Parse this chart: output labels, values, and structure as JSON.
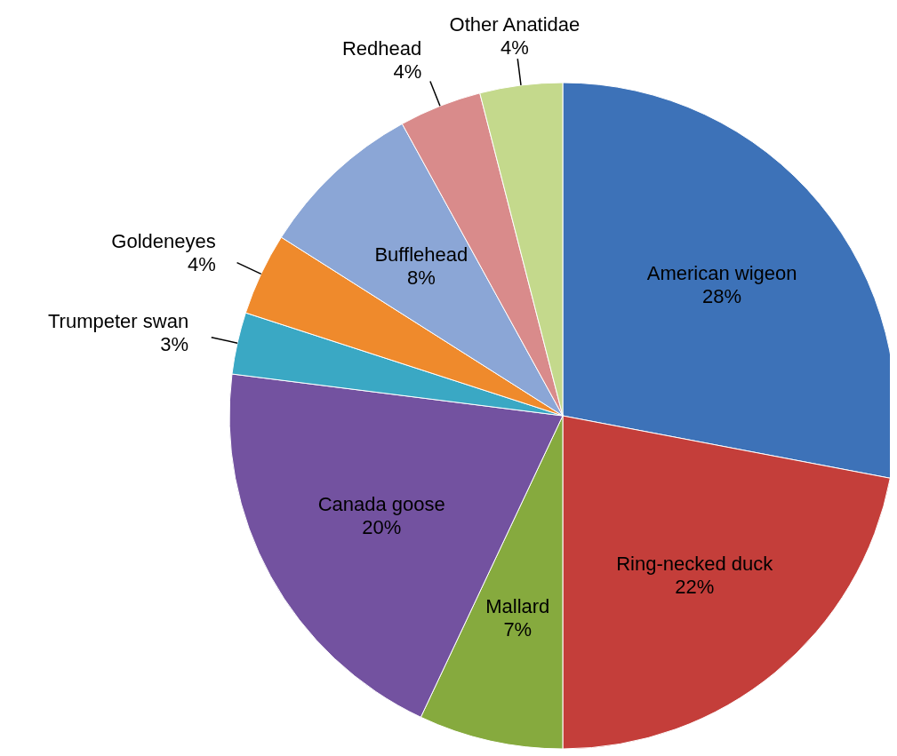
{
  "chart_data": {
    "type": "pie",
    "categories": [
      "American wigeon",
      "Ring-necked duck",
      "Mallard",
      "Canada goose",
      "Trumpeter swan",
      "Goldeneyes",
      "Bufflehead",
      "Redhead",
      "Other Anatidae"
    ],
    "values": [
      28,
      22,
      7,
      20,
      3,
      4,
      8,
      4,
      4
    ],
    "value_labels": [
      "28%",
      "22%",
      "7%",
      "20%",
      "3%",
      "4%",
      "8%",
      "4%",
      "4%"
    ],
    "colors": [
      "#3d72b8",
      "#c43e3a",
      "#86aa3e",
      "#7352a0",
      "#3aa8c4",
      "#ef8a2c",
      "#8ba6d6",
      "#d98b8b",
      "#c4d98c"
    ],
    "legend": false
  }
}
